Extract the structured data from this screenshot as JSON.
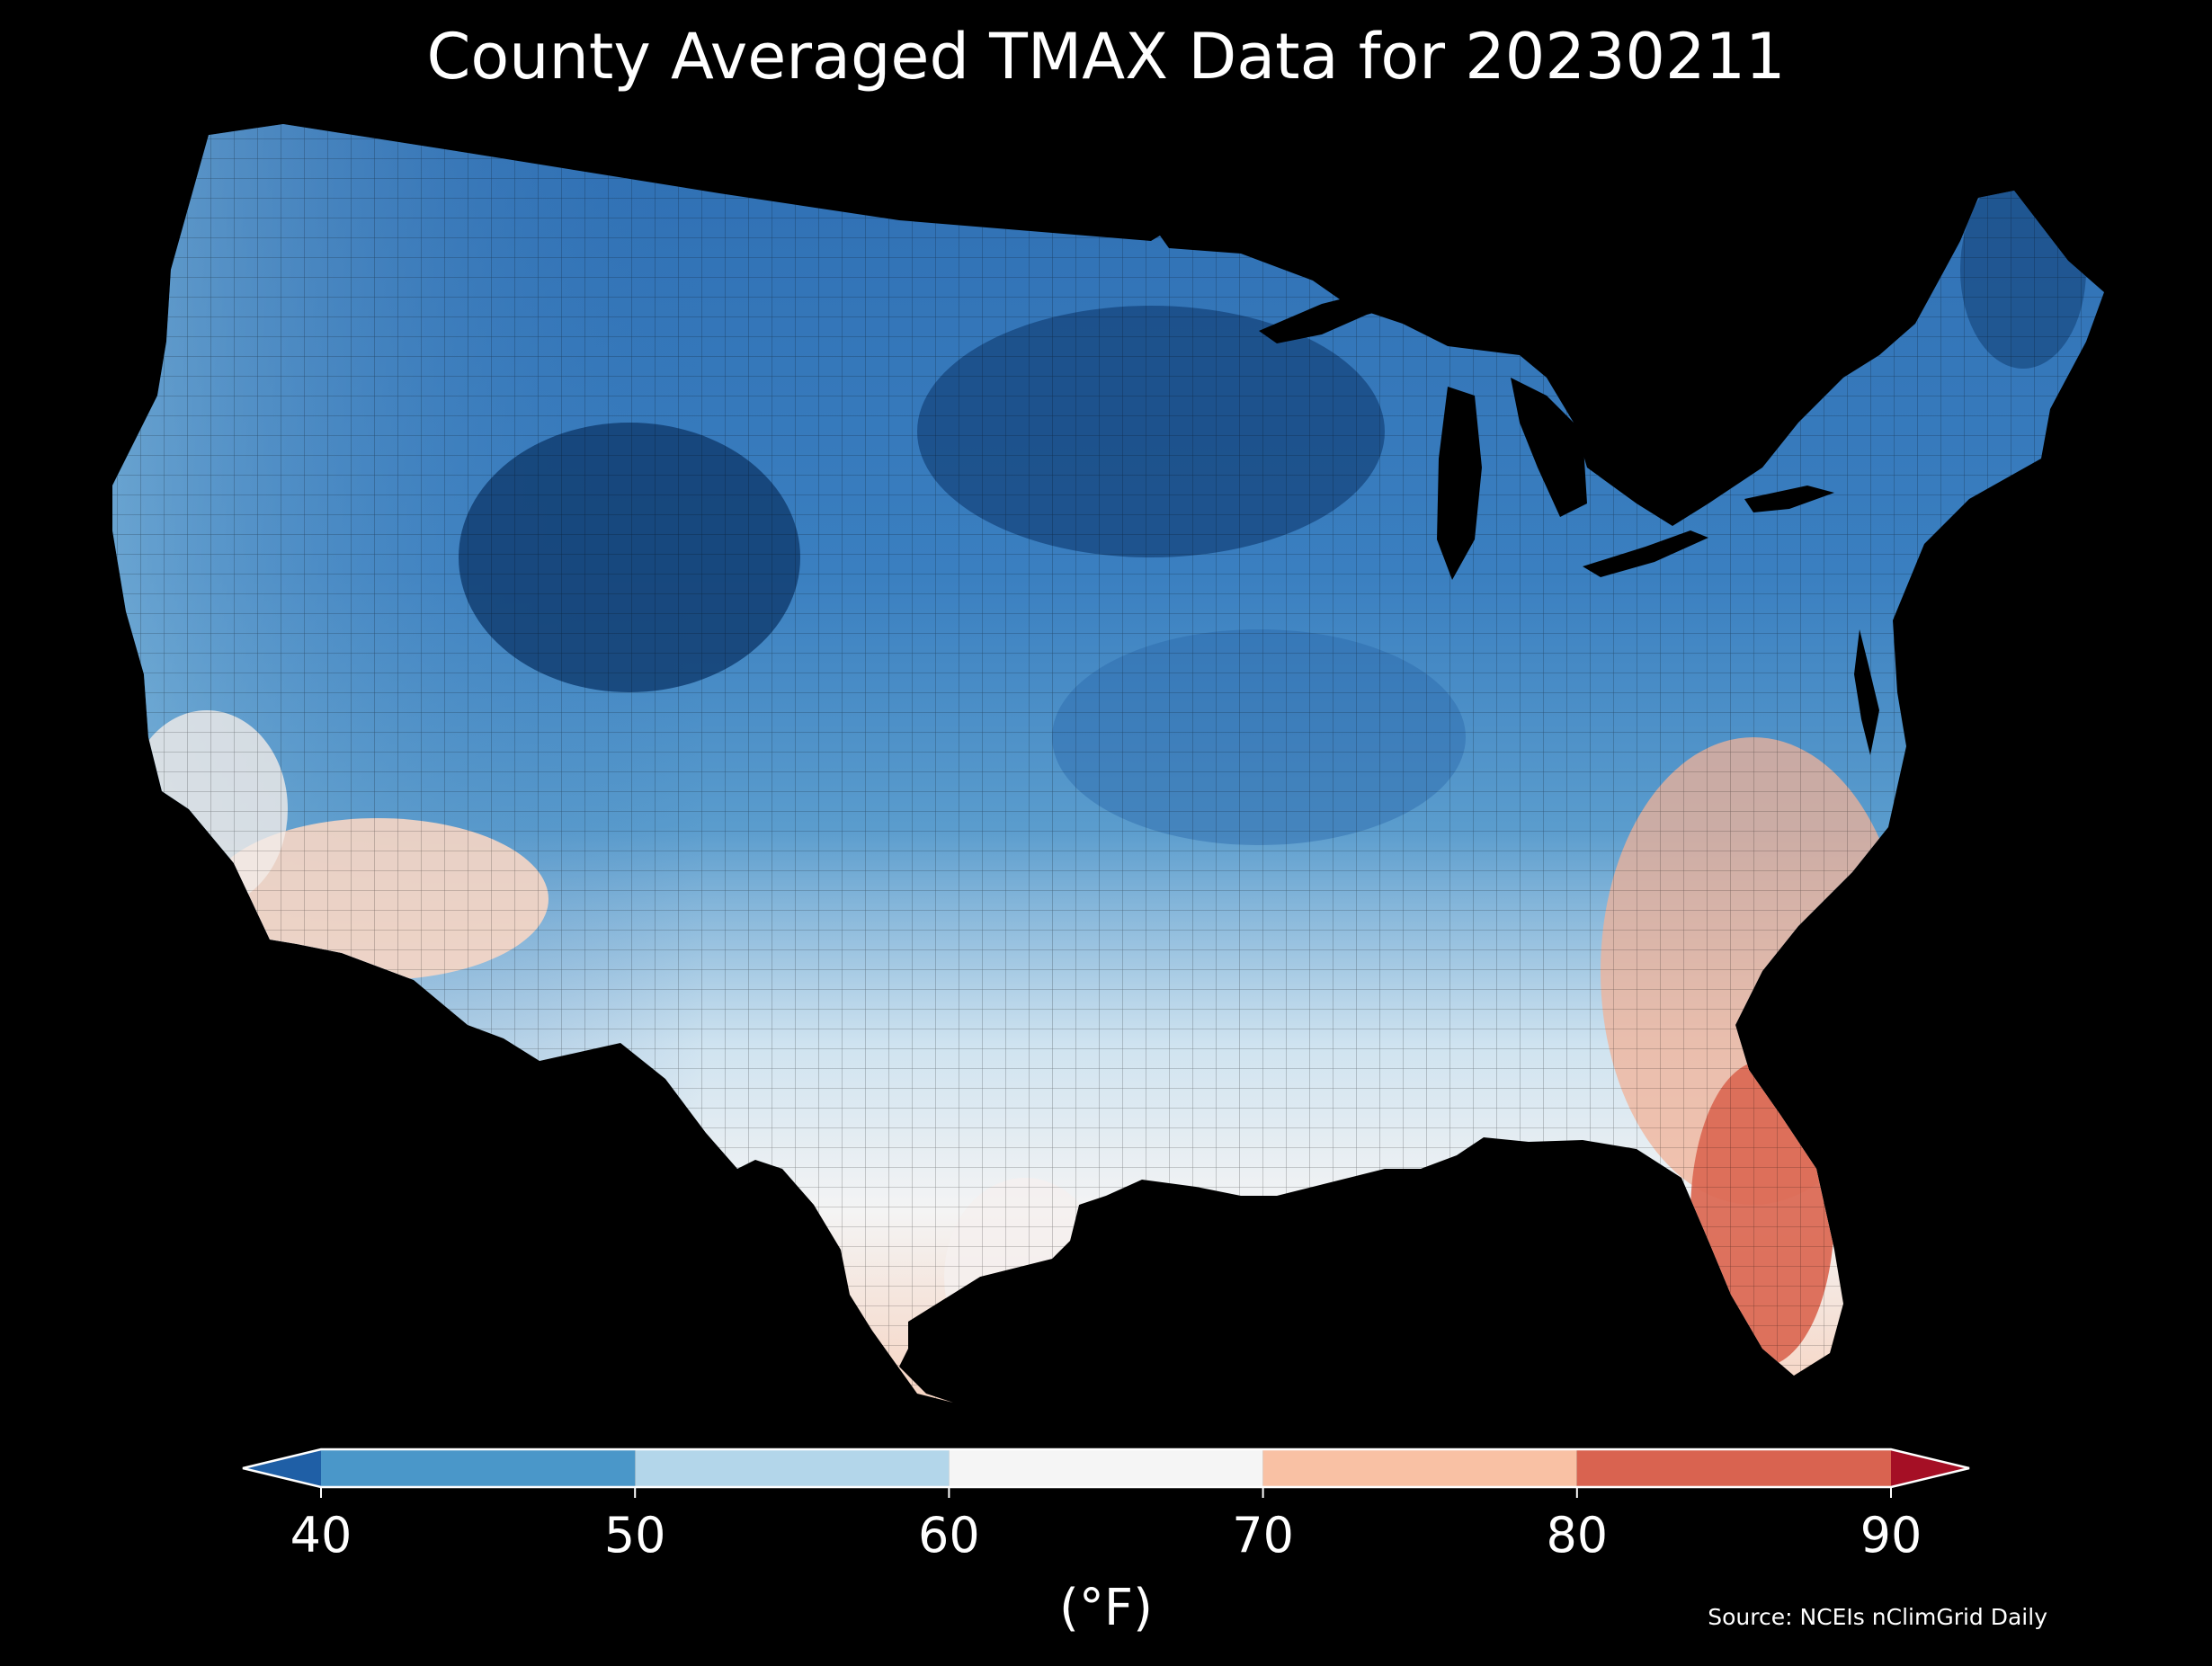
{
  "title": "County Averaged TMAX Data for 20230211",
  "colorbar": {
    "unit_label": "(°F)",
    "ticks": [
      "40",
      "50",
      "60",
      "70",
      "80",
      "90"
    ],
    "extend": "both",
    "bins": [
      {
        "from": null,
        "to": 40,
        "color": "#1f5fa6"
      },
      {
        "from": 40,
        "to": 50,
        "color": "#4a97c9"
      },
      {
        "from": 50,
        "to": 60,
        "color": "#b3d6ea"
      },
      {
        "from": 60,
        "to": 70,
        "color": "#f5f5f5"
      },
      {
        "from": 70,
        "to": 80,
        "color": "#f9c1a4"
      },
      {
        "from": 80,
        "to": 90,
        "color": "#d96350"
      },
      {
        "from": 90,
        "to": null,
        "color": "#a50f25"
      }
    ]
  },
  "source": "Source: NCEIs nClimGrid Daily",
  "map": {
    "region": "contiguous United States",
    "units": "counties",
    "background_color": "#000000",
    "border_color": "#000000"
  }
}
